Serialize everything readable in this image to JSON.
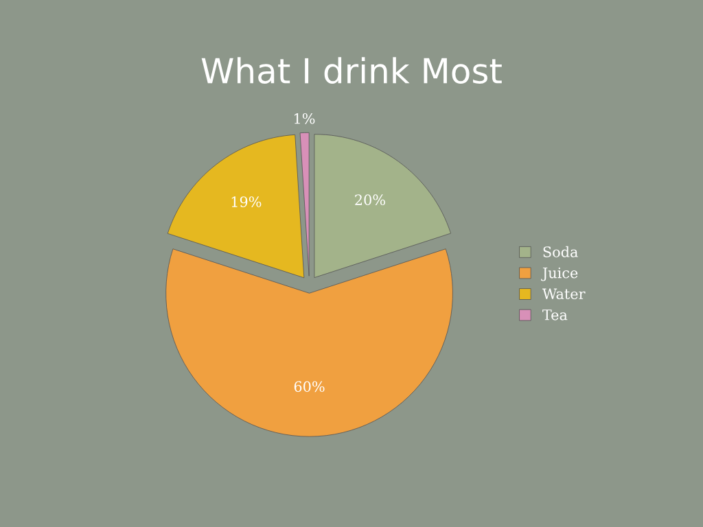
{
  "chart_data": {
    "type": "pie",
    "title": "What I drink Most",
    "categories": [
      "Soda",
      "Juice",
      "Water",
      "Tea"
    ],
    "values": [
      20,
      60,
      19,
      1
    ],
    "value_labels": [
      "20%",
      "60%",
      "19%",
      "1%"
    ],
    "colors": [
      "#a3b38a",
      "#f0a040",
      "#e5b820",
      "#d890b8"
    ],
    "legend": "right"
  }
}
